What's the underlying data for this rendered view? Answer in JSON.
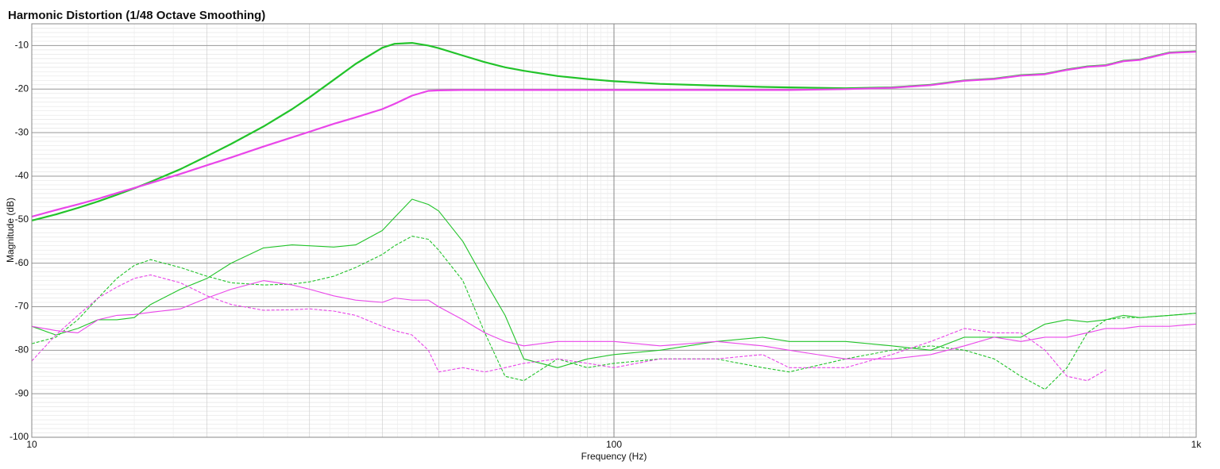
{
  "chart_data": {
    "type": "line",
    "title": "Harmonic Distortion (1/48 Octave Smoothing)",
    "x_label": "Frequency (Hz)",
    "y_label": "Magnitude (dB)",
    "x_scale": "log",
    "grid": true,
    "minor_grid": true,
    "xlim": [
      10,
      1000
    ],
    "ylim": [
      -100,
      -5
    ],
    "xticks": [
      10,
      100,
      {
        "value": 1000,
        "label": "1k"
      }
    ],
    "yticks": [
      -100,
      -90,
      -80,
      -70,
      -60,
      -50,
      -40,
      -30,
      -20,
      -10
    ],
    "x": [
      10,
      11,
      12,
      13,
      14,
      15,
      16,
      18,
      20,
      22,
      25,
      28,
      30,
      33,
      36,
      40,
      42,
      45,
      48,
      50,
      55,
      60,
      65,
      70,
      80,
      90,
      100,
      120,
      150,
      180,
      200,
      250,
      300,
      350,
      400,
      450,
      500,
      550,
      600,
      650,
      700,
      750,
      800,
      900,
      1000
    ],
    "series": [
      {
        "color": "#22c32a",
        "style": "solid",
        "width": 2.2,
        "values": [
          -50.2,
          -48.8,
          -47.3,
          -45.8,
          -44.3,
          -42.8,
          -41.3,
          -38.4,
          -35.4,
          -32.6,
          -28.6,
          -24.6,
          -21.9,
          -17.9,
          -14.2,
          -10.5,
          -9.6,
          -9.4,
          -10,
          -10.6,
          -12.3,
          -13.8,
          -15,
          -15.8,
          -17,
          -17.7,
          -18.2,
          -18.8,
          -19.2,
          -19.5,
          -19.6,
          -19.8,
          -19.6,
          -19,
          -18,
          -17.6,
          -16.8,
          -16.5,
          -15.5,
          -14.8,
          -14.5,
          -13.5,
          -13.2,
          -11.6,
          -11.3
        ]
      },
      {
        "color": "#e946e9",
        "style": "solid",
        "width": 2.2,
        "values": [
          -49.3,
          -47.8,
          -46.5,
          -45.2,
          -43.9,
          -42.7,
          -41.6,
          -39.5,
          -37.5,
          -35.7,
          -33.2,
          -31.1,
          -29.8,
          -28,
          -26.5,
          -24.6,
          -23.4,
          -21.5,
          -20.4,
          -20.3,
          -20.2,
          -20.2,
          -20.2,
          -20.2,
          -20.2,
          -20.2,
          -20.2,
          -20.2,
          -20.2,
          -20.2,
          -20.2,
          -20,
          -19.7,
          -19.1,
          -18.1,
          -17.7,
          -16.9,
          -16.6,
          -15.6,
          -14.9,
          -14.6,
          -13.6,
          -13.3,
          -11.7,
          -11.4
        ]
      },
      {
        "color": "#22c32a",
        "style": "solid",
        "width": 1.1,
        "values": [
          -74.5,
          -76.5,
          -75,
          -73,
          -73,
          -72.5,
          -69.5,
          -66,
          -63.5,
          -60,
          -56.5,
          -55.8,
          -56,
          -56.3,
          -55.8,
          -52.5,
          -49.5,
          -45.3,
          -46.5,
          -48,
          -55,
          -64,
          -72,
          -82,
          -84,
          -82,
          -81,
          -80,
          -78,
          -77,
          -78,
          -78,
          -79,
          -80,
          -77,
          -77,
          -77,
          -74,
          -73,
          -73.5,
          -73,
          -72,
          -72.5,
          -72,
          -71.5
        ]
      },
      {
        "color": "#22c32a",
        "style": "dashed",
        "width": 1.1,
        "values": [
          -78.5,
          -77,
          -73,
          -68,
          -63.5,
          -60.5,
          -59.2,
          -61,
          -63,
          -64.5,
          -65,
          -64.8,
          -64.3,
          -63,
          -61,
          -58,
          -56,
          -53.8,
          -54.5,
          -57,
          -64,
          -76,
          -86,
          -87,
          -82,
          -84,
          -83,
          -82,
          -82,
          -84,
          -85,
          -82,
          -80,
          -79,
          -80,
          -82,
          -86,
          -89,
          -84,
          -76,
          -73,
          -72.5,
          -72.5,
          -72,
          -71.5
        ]
      },
      {
        "color": "#e946e9",
        "style": "solid",
        "width": 1.1,
        "values": [
          -74.5,
          -75.5,
          -76,
          -73,
          -72,
          -71.8,
          -71.3,
          -70.5,
          -68,
          -66,
          -64,
          -65,
          -66,
          -67.5,
          -68.5,
          -69,
          -68,
          -68.5,
          -68.5,
          -70,
          -73,
          -76,
          -78,
          -79,
          -78,
          -78,
          -78,
          -79,
          -78,
          -79,
          -80,
          -82,
          -82,
          -81,
          -79,
          -77,
          -78,
          -77,
          -77,
          -76,
          -75,
          -75,
          -74.5,
          -74.5,
          -74
        ]
      },
      {
        "color": "#e946e9",
        "style": "dashed",
        "width": 1.1,
        "values": [
          -82.5,
          -76.5,
          -72,
          -68,
          -65.5,
          -63.5,
          -62.7,
          -64.5,
          -67.5,
          -69.5,
          -70.8,
          -70.7,
          -70.5,
          -71,
          -72,
          -74.5,
          -75.5,
          -76.5,
          -80,
          -85,
          -84,
          -85,
          -84,
          -83,
          -82,
          -83,
          -84,
          -82,
          -82,
          -81,
          -84,
          -84,
          -81,
          -78,
          -75,
          -76,
          -76,
          -80,
          -86,
          -87,
          -84.5,
          null,
          null,
          null,
          null
        ]
      }
    ]
  }
}
